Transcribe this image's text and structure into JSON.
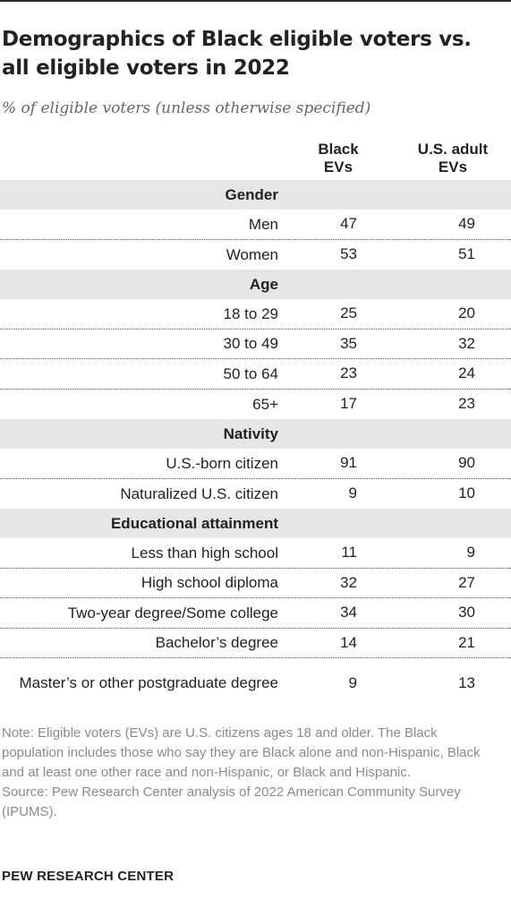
{
  "title": "Demographics of Black eligible voters vs. all eligible voters in 2022",
  "subtitle": "% of eligible voters (unless otherwise specified)",
  "columns": [
    {
      "line1": "Black",
      "line2": "EVs"
    },
    {
      "line1": "U.S. adult",
      "line2": "EVs"
    }
  ],
  "chart_data": {
    "type": "table",
    "title": "Demographics of Black eligible voters vs. all eligible voters in 2022",
    "subtitle": "% of eligible voters (unless otherwise specified)",
    "columns": [
      "Black EVs",
      "U.S. adult EVs"
    ],
    "sections": [
      {
        "name": "Gender",
        "rows": [
          {
            "label": "Men",
            "values": [
              47,
              49
            ]
          },
          {
            "label": "Women",
            "values": [
              53,
              51
            ]
          }
        ]
      },
      {
        "name": "Age",
        "rows": [
          {
            "label": "18 to 29",
            "values": [
              25,
              20
            ]
          },
          {
            "label": "30 to 49",
            "values": [
              35,
              32
            ]
          },
          {
            "label": "50 to 64",
            "values": [
              23,
              24
            ]
          },
          {
            "label": "65+",
            "values": [
              17,
              23
            ]
          }
        ]
      },
      {
        "name": "Nativity",
        "rows": [
          {
            "label": "U.S.-born citizen",
            "values": [
              91,
              90
            ]
          },
          {
            "label": "Naturalized U.S. citizen",
            "values": [
              9,
              10
            ]
          }
        ]
      },
      {
        "name": "Educational attainment",
        "rows": [
          {
            "label": "Less than high school",
            "values": [
              11,
              9
            ]
          },
          {
            "label": "High school diploma",
            "values": [
              32,
              27
            ]
          },
          {
            "label": "Two-year degree/Some college",
            "values": [
              34,
              30
            ]
          },
          {
            "label": "Bachelor’s degree",
            "values": [
              14,
              21
            ]
          },
          {
            "label": "Master’s or other postgraduate degree",
            "values": [
              9,
              13
            ]
          }
        ]
      }
    ]
  },
  "note": "Note: Eligible voters (EVs) are U.S. citizens ages 18 and older. The Black population includes those who say they are Black alone and non-Hispanic, Black and at least one other race and non-Hispanic, or Black and Hispanic.",
  "source": "Source: Pew Research Center analysis of 2022 American Community Survey (IPUMS).",
  "brand": "PEW RESEARCH CENTER"
}
